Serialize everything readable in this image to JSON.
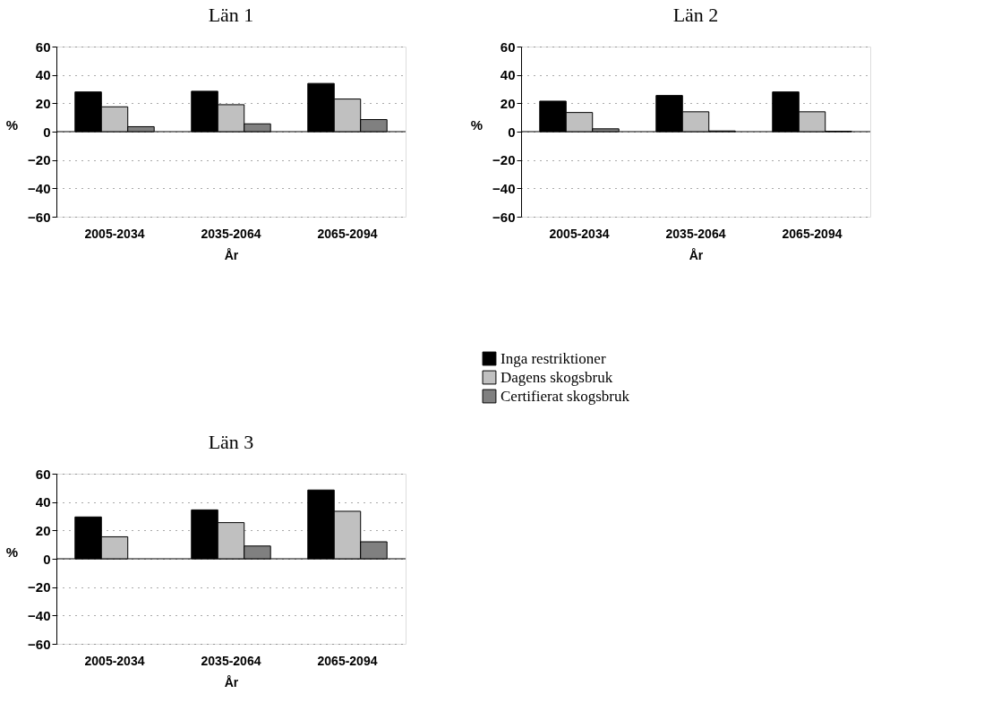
{
  "chart_data": [
    {
      "type": "bar",
      "title": "Län 1",
      "xlabel": "År",
      "ylabel": "%",
      "categories": [
        "2005-2034",
        "2035-2064",
        "2065-2094"
      ],
      "ylim": [
        -60,
        60
      ],
      "yticks": [
        -60,
        -40,
        -20,
        0,
        20,
        40,
        60
      ],
      "grid": "y",
      "legend": "bottom right",
      "ref_lines": [
        {
          "axis": "y",
          "value": 0
        }
      ],
      "series": [
        {
          "name": "Inga restriktioner",
          "color": "#000000",
          "values": [
            28,
            28.5,
            34
          ]
        },
        {
          "name": "Dagens skogsbruk",
          "color": "#c0c0c0",
          "values": [
            17.5,
            19,
            23
          ]
        },
        {
          "name": "Certifierat skogsbruk",
          "color": "#808080",
          "values": [
            3.5,
            5.5,
            8.5
          ]
        }
      ]
    },
    {
      "type": "bar",
      "title": "Län 2",
      "xlabel": "År",
      "ylabel": "%",
      "categories": [
        "2005-2034",
        "2035-2064",
        "2065-2094"
      ],
      "ylim": [
        -60,
        60
      ],
      "yticks": [
        -60,
        -40,
        -20,
        0,
        20,
        40,
        60
      ],
      "grid": "y",
      "legend": false,
      "ref_lines": [
        {
          "axis": "y",
          "value": 0
        }
      ],
      "series": [
        {
          "name": "Inga restriktioner",
          "color": "#000000",
          "values": [
            21.5,
            25.5,
            28
          ]
        },
        {
          "name": "Dagens skogsbruk",
          "color": "#c0c0c0",
          "values": [
            13.5,
            14,
            14
          ]
        },
        {
          "name": "Certifierat skogsbruk",
          "color": "#808080",
          "values": [
            2,
            0.5,
            0.2
          ]
        }
      ]
    },
    {
      "type": "bar",
      "title": "Län 3",
      "xlabel": "År",
      "ylabel": "%",
      "categories": [
        "2005-2034",
        "2035-2064",
        "2065-2094"
      ],
      "ylim": [
        -60,
        60
      ],
      "yticks": [
        -60,
        -40,
        -20,
        0,
        20,
        40,
        60
      ],
      "grid": "y",
      "legend": false,
      "ref_lines": [
        {
          "axis": "y",
          "value": 0
        }
      ],
      "series": [
        {
          "name": "Inga restriktioner",
          "color": "#000000",
          "values": [
            29.5,
            34.5,
            48.5
          ]
        },
        {
          "name": "Dagens skogsbruk",
          "color": "#c0c0c0",
          "values": [
            15.5,
            25.5,
            33.5
          ]
        },
        {
          "name": "Certifierat skogsbruk",
          "color": "#808080",
          "values": [
            null,
            9,
            12
          ]
        }
      ]
    }
  ]
}
